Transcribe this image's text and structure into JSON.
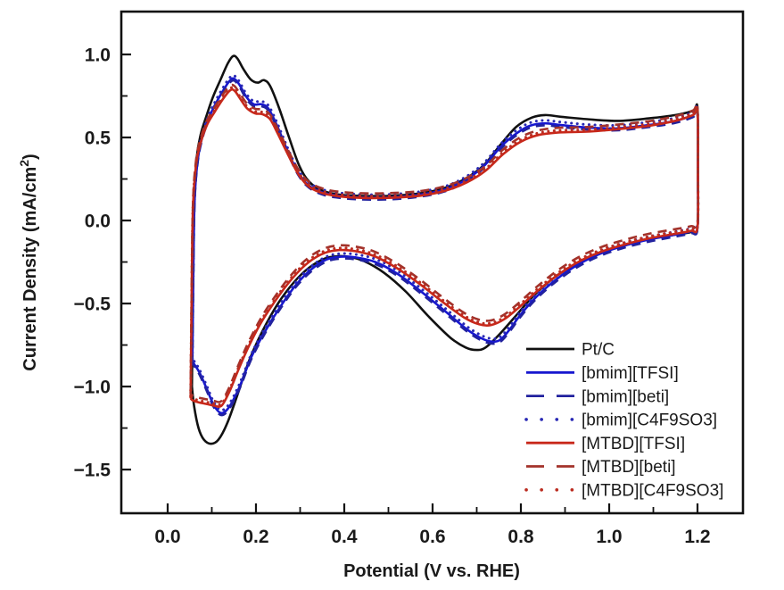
{
  "figure": {
    "type_label": "cyclic-voltammogram",
    "background": "#ffffff",
    "frame_color": "#111111",
    "text_color": "#1a1a1a"
  },
  "chart_data": {
    "type": "line",
    "title": "",
    "xlabel": "Potential (V vs. RHE)",
    "ylabel": "Current Density (mA/cm²)",
    "ylabel_parts": {
      "prefix": "Current Density (mA/cm",
      "sup": "2",
      "suffix": ")"
    },
    "xlim": [
      -0.105,
      1.303
    ],
    "ylim": [
      -1.763,
      1.258
    ],
    "grid": false,
    "legend_position": "inside-lower-right",
    "x_major_ticks": [
      0.0,
      0.2,
      0.4,
      0.6,
      0.8,
      1.0,
      1.2
    ],
    "x_major_labels": [
      "0.0",
      "0.2",
      "0.4",
      "0.6",
      "0.8",
      "1.0",
      "1.2"
    ],
    "x_minor_ticks": [
      0.1,
      0.3,
      0.5,
      0.7,
      0.9,
      1.1
    ],
    "y_major_ticks": [
      1.0,
      0.5,
      0.0,
      -0.5,
      -1.0,
      -1.5
    ],
    "y_major_labels": [
      "1.0",
      "0.5",
      "0.0",
      "−0.5",
      "−1.0",
      "−1.5"
    ],
    "y_minor_ticks": [
      0.75,
      0.25,
      -0.25,
      -0.75,
      -1.25
    ],
    "shapes": {
      "ptc": [
        [
          0.055,
          -1.0
        ],
        [
          0.057,
          -0.45
        ],
        [
          0.06,
          0.1
        ],
        [
          0.066,
          0.38
        ],
        [
          0.075,
          0.52
        ],
        [
          0.088,
          0.63
        ],
        [
          0.102,
          0.74
        ],
        [
          0.12,
          0.85
        ],
        [
          0.136,
          0.945
        ],
        [
          0.148,
          0.99
        ],
        [
          0.158,
          0.975
        ],
        [
          0.172,
          0.91
        ],
        [
          0.188,
          0.85
        ],
        [
          0.204,
          0.83
        ],
        [
          0.218,
          0.845
        ],
        [
          0.232,
          0.81
        ],
        [
          0.252,
          0.68
        ],
        [
          0.275,
          0.5
        ],
        [
          0.298,
          0.33
        ],
        [
          0.32,
          0.235
        ],
        [
          0.35,
          0.18
        ],
        [
          0.39,
          0.155
        ],
        [
          0.44,
          0.148
        ],
        [
          0.5,
          0.148
        ],
        [
          0.56,
          0.16
        ],
        [
          0.62,
          0.19
        ],
        [
          0.67,
          0.245
        ],
        [
          0.715,
          0.33
        ],
        [
          0.755,
          0.46
        ],
        [
          0.79,
          0.565
        ],
        [
          0.825,
          0.62
        ],
        [
          0.855,
          0.635
        ],
        [
          0.89,
          0.625
        ],
        [
          0.95,
          0.61
        ],
        [
          1.02,
          0.6
        ],
        [
          1.09,
          0.615
        ],
        [
          1.15,
          0.635
        ],
        [
          1.19,
          0.66
        ],
        [
          1.2,
          0.675
        ],
        [
          1.201,
          0.3
        ],
        [
          1.2,
          -0.045
        ],
        [
          1.185,
          -0.07
        ],
        [
          1.15,
          -0.085
        ],
        [
          1.09,
          -0.11
        ],
        [
          1.03,
          -0.15
        ],
        [
          0.98,
          -0.195
        ],
        [
          0.93,
          -0.255
        ],
        [
          0.88,
          -0.335
        ],
        [
          0.83,
          -0.45
        ],
        [
          0.785,
          -0.585
        ],
        [
          0.75,
          -0.69
        ],
        [
          0.72,
          -0.765
        ],
        [
          0.7,
          -0.78
        ],
        [
          0.675,
          -0.765
        ],
        [
          0.64,
          -0.705
        ],
        [
          0.59,
          -0.575
        ],
        [
          0.54,
          -0.43
        ],
        [
          0.49,
          -0.315
        ],
        [
          0.445,
          -0.245
        ],
        [
          0.41,
          -0.218
        ],
        [
          0.385,
          -0.215
        ],
        [
          0.355,
          -0.23
        ],
        [
          0.32,
          -0.285
        ],
        [
          0.285,
          -0.375
        ],
        [
          0.25,
          -0.5
        ],
        [
          0.215,
          -0.665
        ],
        [
          0.185,
          -0.84
        ],
        [
          0.158,
          -1.05
        ],
        [
          0.135,
          -1.22
        ],
        [
          0.115,
          -1.32
        ],
        [
          0.098,
          -1.345
        ],
        [
          0.082,
          -1.32
        ],
        [
          0.07,
          -1.25
        ],
        [
          0.06,
          -1.12
        ],
        [
          0.055,
          -1.0
        ]
      ],
      "bmim": [
        [
          0.056,
          -0.85
        ],
        [
          0.058,
          -0.35
        ],
        [
          0.061,
          0.12
        ],
        [
          0.068,
          0.36
        ],
        [
          0.078,
          0.5
        ],
        [
          0.092,
          0.61
        ],
        [
          0.108,
          0.7
        ],
        [
          0.125,
          0.78
        ],
        [
          0.14,
          0.84
        ],
        [
          0.15,
          0.855
        ],
        [
          0.162,
          0.82
        ],
        [
          0.178,
          0.745
        ],
        [
          0.195,
          0.7
        ],
        [
          0.212,
          0.7
        ],
        [
          0.228,
          0.675
        ],
        [
          0.248,
          0.57
        ],
        [
          0.27,
          0.43
        ],
        [
          0.295,
          0.29
        ],
        [
          0.32,
          0.21
        ],
        [
          0.355,
          0.165
        ],
        [
          0.4,
          0.145
        ],
        [
          0.45,
          0.138
        ],
        [
          0.51,
          0.14
        ],
        [
          0.57,
          0.155
        ],
        [
          0.625,
          0.185
        ],
        [
          0.672,
          0.24
        ],
        [
          0.715,
          0.325
        ],
        [
          0.755,
          0.445
        ],
        [
          0.79,
          0.525
        ],
        [
          0.822,
          0.572
        ],
        [
          0.855,
          0.585
        ],
        [
          0.89,
          0.575
        ],
        [
          0.95,
          0.56
        ],
        [
          1.02,
          0.555
        ],
        [
          1.09,
          0.575
        ],
        [
          1.15,
          0.6
        ],
        [
          1.19,
          0.635
        ],
        [
          1.2,
          0.655
        ],
        [
          1.201,
          0.28
        ],
        [
          1.2,
          -0.04
        ],
        [
          1.185,
          -0.065
        ],
        [
          1.15,
          -0.085
        ],
        [
          1.09,
          -0.115
        ],
        [
          1.03,
          -0.155
        ],
        [
          0.98,
          -0.2
        ],
        [
          0.93,
          -0.265
        ],
        [
          0.88,
          -0.355
        ],
        [
          0.835,
          -0.46
        ],
        [
          0.8,
          -0.565
        ],
        [
          0.775,
          -0.655
        ],
        [
          0.755,
          -0.715
        ],
        [
          0.738,
          -0.73
        ],
        [
          0.715,
          -0.715
        ],
        [
          0.68,
          -0.66
        ],
        [
          0.63,
          -0.55
        ],
        [
          0.575,
          -0.43
        ],
        [
          0.52,
          -0.32
        ],
        [
          0.47,
          -0.25
        ],
        [
          0.425,
          -0.222
        ],
        [
          0.392,
          -0.218
        ],
        [
          0.36,
          -0.235
        ],
        [
          0.325,
          -0.295
        ],
        [
          0.29,
          -0.39
        ],
        [
          0.255,
          -0.52
        ],
        [
          0.22,
          -0.67
        ],
        [
          0.19,
          -0.82
        ],
        [
          0.163,
          -1.0
        ],
        [
          0.14,
          -1.12
        ],
        [
          0.122,
          -1.16
        ],
        [
          0.105,
          -1.115
        ],
        [
          0.088,
          -1.01
        ],
        [
          0.072,
          -0.915
        ],
        [
          0.06,
          -0.865
        ],
        [
          0.056,
          -0.85
        ]
      ],
      "mtbd": [
        [
          0.052,
          -1.07
        ],
        [
          0.054,
          -0.55
        ],
        [
          0.057,
          0.05
        ],
        [
          0.064,
          0.33
        ],
        [
          0.075,
          0.47
        ],
        [
          0.09,
          0.58
        ],
        [
          0.108,
          0.66
        ],
        [
          0.126,
          0.735
        ],
        [
          0.142,
          0.785
        ],
        [
          0.152,
          0.78
        ],
        [
          0.165,
          0.73
        ],
        [
          0.18,
          0.675
        ],
        [
          0.198,
          0.645
        ],
        [
          0.215,
          0.64
        ],
        [
          0.232,
          0.61
        ],
        [
          0.25,
          0.52
        ],
        [
          0.272,
          0.4
        ],
        [
          0.297,
          0.275
        ],
        [
          0.322,
          0.2
        ],
        [
          0.357,
          0.16
        ],
        [
          0.4,
          0.142
        ],
        [
          0.455,
          0.135
        ],
        [
          0.515,
          0.138
        ],
        [
          0.575,
          0.15
        ],
        [
          0.63,
          0.18
        ],
        [
          0.678,
          0.23
        ],
        [
          0.72,
          0.3
        ],
        [
          0.76,
          0.4
        ],
        [
          0.8,
          0.475
        ],
        [
          0.84,
          0.515
        ],
        [
          0.885,
          0.53
        ],
        [
          0.95,
          0.535
        ],
        [
          1.02,
          0.55
        ],
        [
          1.09,
          0.57
        ],
        [
          1.15,
          0.6
        ],
        [
          1.19,
          0.635
        ],
        [
          1.2,
          0.655
        ],
        [
          1.201,
          0.28
        ],
        [
          1.2,
          -0.04
        ],
        [
          1.185,
          -0.062
        ],
        [
          1.15,
          -0.08
        ],
        [
          1.09,
          -0.108
        ],
        [
          1.03,
          -0.148
        ],
        [
          0.98,
          -0.19
        ],
        [
          0.93,
          -0.25
        ],
        [
          0.88,
          -0.335
        ],
        [
          0.835,
          -0.43
        ],
        [
          0.795,
          -0.525
        ],
        [
          0.762,
          -0.595
        ],
        [
          0.732,
          -0.63
        ],
        [
          0.705,
          -0.625
        ],
        [
          0.672,
          -0.585
        ],
        [
          0.625,
          -0.495
        ],
        [
          0.572,
          -0.385
        ],
        [
          0.518,
          -0.285
        ],
        [
          0.468,
          -0.215
        ],
        [
          0.425,
          -0.185
        ],
        [
          0.39,
          -0.178
        ],
        [
          0.356,
          -0.195
        ],
        [
          0.32,
          -0.25
        ],
        [
          0.285,
          -0.34
        ],
        [
          0.25,
          -0.46
        ],
        [
          0.215,
          -0.6
        ],
        [
          0.185,
          -0.75
        ],
        [
          0.16,
          -0.9
        ],
        [
          0.14,
          -1.03
        ],
        [
          0.122,
          -1.115
        ],
        [
          0.105,
          -1.115
        ],
        [
          0.088,
          -1.105
        ],
        [
          0.07,
          -1.095
        ],
        [
          0.056,
          -1.082
        ],
        [
          0.052,
          -1.07
        ]
      ]
    },
    "series": [
      {
        "name": "Pt/C",
        "color": "#111111",
        "dash": "solid",
        "shape": "ptc",
        "offset": 0
      },
      {
        "name": "[bmim][TFSI]",
        "color": "#1717cf",
        "dash": "solid",
        "shape": "bmim",
        "offset": 0
      },
      {
        "name": "[bmim][beti]",
        "color": "#22229e",
        "dash": "dashed",
        "shape": "bmim",
        "offset": -0.012
      },
      {
        "name": "[bmim][C4F9SO3]",
        "color": "#2828b4",
        "dash": "dotted",
        "shape": "bmim",
        "offset": 0.018
      },
      {
        "name": "[MTBD][TFSI]",
        "color": "#c8281a",
        "dash": "solid",
        "shape": "mtbd",
        "offset": 0
      },
      {
        "name": "[MTBD][beti]",
        "color": "#a3322a",
        "dash": "dashed",
        "shape": "mtbd",
        "offset": 0.028
      },
      {
        "name": "[MTBD][C4F9SO3]",
        "color": "#bb2c20",
        "dash": "dotted",
        "shape": "mtbd",
        "offset": 0.012
      }
    ]
  }
}
